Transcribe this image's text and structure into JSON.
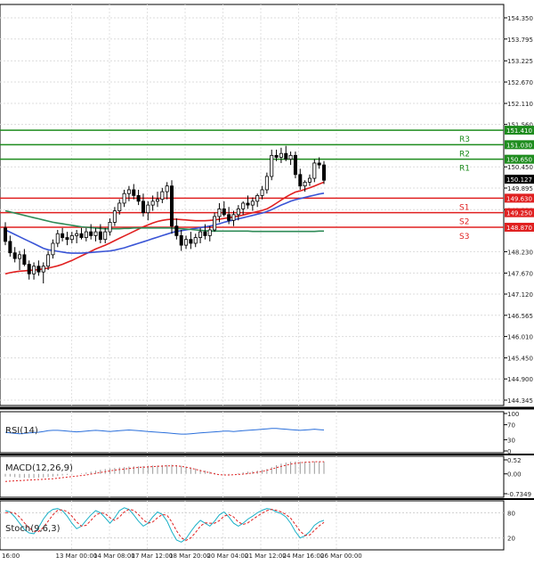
{
  "chart_data": {
    "type": "candlestick",
    "price_axis": {
      "ticks": [
        "154.350",
        "153.795",
        "153.225",
        "152.670",
        "152.110",
        "151.560",
        "150.450",
        "149.895",
        "149.330",
        "148.230",
        "147.670",
        "147.120",
        "146.565",
        "146.010",
        "145.450",
        "144.900",
        "144.345"
      ],
      "tick_values": [
        154.35,
        153.795,
        153.225,
        152.67,
        152.11,
        151.56,
        150.45,
        149.895,
        149.33,
        148.23,
        147.67,
        147.12,
        146.565,
        146.01,
        145.45,
        144.9,
        144.345
      ]
    },
    "current_price": {
      "label": "150.127",
      "value": 150.127
    },
    "levels": [
      {
        "name": "R3",
        "label": "151.410",
        "value": 151.41,
        "color": "#1e8c1e"
      },
      {
        "name": "R2",
        "label": "151.030",
        "value": 151.03,
        "color": "#1e8c1e"
      },
      {
        "name": "R1",
        "label": "150.650",
        "value": 150.65,
        "color": "#1e8c1e"
      },
      {
        "name": "S1",
        "label": "149.630",
        "value": 149.63,
        "color": "#e02020"
      },
      {
        "name": "S2",
        "label": "149.250",
        "value": 149.25,
        "color": "#e02020"
      },
      {
        "name": "S3",
        "label": "148.870",
        "value": 148.87,
        "color": "#e02020"
      }
    ],
    "time_axis": [
      "16:00",
      "13 Mar 00:00",
      "14 Mar 08:00",
      "17 Mar 12:00",
      "18 Mar 20:00",
      "20 Mar 04:00",
      "21 Mar 12:00",
      "24 Mar 16:00",
      "26 Mar 00:00"
    ],
    "candles": [
      [
        148.85,
        149.0,
        148.4,
        148.5
      ],
      [
        148.5,
        148.65,
        148.1,
        148.2
      ],
      [
        148.2,
        148.35,
        147.95,
        148.05
      ],
      [
        148.05,
        148.25,
        147.75,
        148.15
      ],
      [
        148.15,
        148.3,
        147.85,
        147.9
      ],
      [
        147.9,
        148.0,
        147.5,
        147.65
      ],
      [
        147.65,
        147.95,
        147.5,
        147.85
      ],
      [
        147.85,
        148.0,
        147.6,
        147.7
      ],
      [
        147.7,
        147.95,
        147.4,
        147.85
      ],
      [
        147.85,
        148.25,
        147.75,
        148.15
      ],
      [
        148.15,
        148.55,
        148.05,
        148.45
      ],
      [
        148.45,
        148.8,
        148.35,
        148.7
      ],
      [
        148.7,
        148.85,
        148.5,
        148.6
      ],
      [
        148.6,
        148.75,
        148.4,
        148.55
      ],
      [
        148.55,
        148.75,
        148.45,
        148.65
      ],
      [
        148.65,
        148.8,
        148.45,
        148.7
      ],
      [
        148.7,
        148.85,
        148.55,
        148.6
      ],
      [
        148.6,
        148.85,
        148.5,
        148.75
      ],
      [
        148.75,
        148.95,
        148.55,
        148.65
      ],
      [
        148.65,
        148.85,
        148.5,
        148.75
      ],
      [
        148.75,
        148.95,
        148.45,
        148.55
      ],
      [
        148.55,
        148.85,
        148.45,
        148.75
      ],
      [
        148.75,
        149.1,
        148.65,
        149.0
      ],
      [
        149.0,
        149.4,
        148.9,
        149.3
      ],
      [
        149.3,
        149.6,
        149.2,
        149.5
      ],
      [
        149.5,
        149.85,
        149.4,
        149.75
      ],
      [
        149.75,
        149.95,
        149.55,
        149.85
      ],
      [
        149.85,
        150.0,
        149.6,
        149.7
      ],
      [
        149.7,
        149.85,
        149.45,
        149.55
      ],
      [
        149.55,
        149.75,
        149.15,
        149.25
      ],
      [
        149.25,
        149.55,
        149.05,
        149.45
      ],
      [
        149.45,
        149.7,
        149.3,
        149.55
      ],
      [
        149.55,
        149.8,
        149.4,
        149.6
      ],
      [
        149.6,
        149.9,
        149.5,
        149.8
      ],
      [
        149.8,
        150.05,
        149.6,
        149.95
      ],
      [
        149.95,
        150.1,
        148.7,
        148.9
      ],
      [
        148.9,
        149.1,
        148.55,
        148.65
      ],
      [
        148.65,
        148.8,
        148.25,
        148.4
      ],
      [
        148.4,
        148.65,
        148.3,
        148.55
      ],
      [
        148.55,
        148.75,
        148.3,
        148.45
      ],
      [
        148.45,
        148.7,
        148.35,
        148.6
      ],
      [
        148.6,
        148.85,
        148.45,
        148.75
      ],
      [
        148.75,
        148.95,
        148.55,
        148.65
      ],
      [
        148.65,
        148.9,
        148.5,
        148.8
      ],
      [
        148.8,
        149.25,
        148.75,
        149.15
      ],
      [
        149.15,
        149.5,
        149.0,
        149.35
      ],
      [
        149.35,
        149.55,
        149.15,
        149.2
      ],
      [
        149.2,
        149.4,
        148.95,
        149.05
      ],
      [
        149.05,
        149.3,
        148.9,
        149.2
      ],
      [
        149.2,
        149.45,
        149.05,
        149.35
      ],
      [
        149.35,
        149.55,
        149.2,
        149.5
      ],
      [
        149.5,
        149.7,
        149.35,
        149.45
      ],
      [
        149.45,
        149.65,
        149.3,
        149.55
      ],
      [
        149.55,
        149.75,
        149.4,
        149.7
      ],
      [
        149.7,
        149.95,
        149.6,
        149.85
      ],
      [
        149.85,
        150.3,
        149.75,
        150.2
      ],
      [
        150.2,
        150.9,
        150.1,
        150.75
      ],
      [
        150.75,
        150.9,
        150.6,
        150.7
      ],
      [
        150.7,
        150.95,
        150.55,
        150.8
      ],
      [
        150.8,
        151.0,
        150.6,
        150.65
      ],
      [
        150.65,
        150.85,
        150.5,
        150.75
      ],
      [
        150.75,
        150.85,
        150.15,
        150.25
      ],
      [
        150.25,
        150.4,
        149.85,
        149.95
      ],
      [
        149.95,
        150.1,
        149.8,
        150.05
      ],
      [
        150.05,
        150.25,
        149.95,
        150.15
      ],
      [
        150.15,
        150.65,
        150.05,
        150.55
      ],
      [
        150.55,
        150.7,
        150.4,
        150.5
      ],
      [
        150.5,
        150.6,
        150.0,
        150.1
      ]
    ],
    "moving_averages": [
      {
        "name": "EMA fast",
        "color": "#e02020",
        "values": [
          147.65,
          147.68,
          147.7,
          147.72,
          147.73,
          147.74,
          147.75,
          147.76,
          147.78,
          147.8,
          147.83,
          147.86,
          147.9,
          147.95,
          148.0,
          148.06,
          148.12,
          148.18,
          148.24,
          148.3,
          148.35,
          148.4,
          148.46,
          148.52,
          148.58,
          148.64,
          148.7,
          148.76,
          148.82,
          148.88,
          148.93,
          148.98,
          149.02,
          149.05,
          149.07,
          149.08,
          149.08,
          149.07,
          149.06,
          149.05,
          149.04,
          149.04,
          149.04,
          149.05,
          149.06,
          149.08,
          149.1,
          149.12,
          149.14,
          149.16,
          149.19,
          149.22,
          149.25,
          149.28,
          149.31,
          149.35,
          149.42,
          149.5,
          149.58,
          149.66,
          149.73,
          149.79,
          149.82,
          149.86,
          149.9,
          149.95,
          150.0,
          150.05
        ]
      },
      {
        "name": "EMA mid",
        "color": "#3a55d6",
        "values": [
          148.8,
          148.74,
          148.68,
          148.62,
          148.56,
          148.5,
          148.44,
          148.38,
          148.32,
          148.28,
          148.26,
          148.24,
          148.22,
          148.2,
          148.19,
          148.19,
          148.19,
          148.2,
          148.21,
          148.22,
          148.23,
          148.24,
          148.25,
          148.27,
          148.3,
          148.33,
          148.37,
          148.41,
          148.45,
          148.49,
          148.53,
          148.57,
          148.61,
          148.65,
          148.69,
          148.73,
          148.76,
          148.78,
          148.8,
          148.82,
          148.84,
          148.86,
          148.88,
          148.9,
          148.93,
          148.96,
          149.0,
          149.03,
          149.06,
          149.09,
          149.12,
          149.15,
          149.18,
          149.21,
          149.24,
          149.28,
          149.33,
          149.39,
          149.45,
          149.5,
          149.55,
          149.59,
          149.62,
          149.65,
          149.68,
          149.71,
          149.74,
          149.76
        ]
      },
      {
        "name": "EMA slow",
        "color": "#2e8b57",
        "values": [
          149.3,
          149.27,
          149.24,
          149.21,
          149.18,
          149.15,
          149.12,
          149.09,
          149.06,
          149.03,
          149.0,
          148.98,
          148.96,
          148.94,
          148.92,
          148.9,
          148.88,
          148.87,
          148.86,
          148.85,
          148.84,
          148.83,
          148.83,
          148.83,
          148.83,
          148.84,
          148.84,
          148.85,
          148.85,
          148.85,
          148.85,
          148.85,
          148.85,
          148.85,
          148.85,
          148.85,
          148.84,
          148.83,
          148.82,
          148.81,
          148.8,
          148.79,
          148.78,
          148.77,
          148.77,
          148.77,
          148.77,
          148.77,
          148.77,
          148.77,
          148.77,
          148.77,
          148.76,
          148.76,
          148.76,
          148.76,
          148.76,
          148.76,
          148.76,
          148.76,
          148.76,
          148.76,
          148.76,
          148.76,
          148.76,
          148.76,
          148.77,
          148.77
        ]
      }
    ],
    "rsi": {
      "label": "RSI(14)",
      "ticks": [
        "100",
        "70",
        "30",
        "0"
      ],
      "tick_values": [
        100,
        70,
        30,
        0
      ],
      "color": "#2a6fdb",
      "values": [
        50,
        48,
        47,
        46,
        47,
        48,
        49,
        50,
        52,
        54,
        55,
        55,
        54,
        53,
        52,
        51,
        52,
        53,
        54,
        55,
        54,
        53,
        52,
        53,
        54,
        55,
        56,
        55,
        54,
        53,
        52,
        51,
        50,
        49,
        48,
        47,
        46,
        45,
        45,
        46,
        47,
        48,
        49,
        50,
        51,
        52,
        53,
        53,
        52,
        53,
        54,
        55,
        56,
        57,
        58,
        59,
        60,
        60,
        59,
        58,
        57,
        56,
        55,
        56,
        57,
        58,
        57,
        56
      ]
    },
    "macd": {
      "label": "MACD(12,26,9)",
      "ticks": [
        "0.52",
        "0.00",
        "-0.7349"
      ],
      "tick_values": [
        0.52,
        0.0,
        -0.7349
      ],
      "hist_color": "#999999",
      "signal_color": "#e02020",
      "histogram": [
        -0.1,
        -0.1,
        -0.12,
        -0.14,
        -0.14,
        -0.15,
        -0.15,
        -0.14,
        -0.13,
        -0.12,
        -0.1,
        -0.08,
        -0.06,
        -0.04,
        -0.02,
        0.0,
        0.02,
        0.05,
        0.08,
        0.12,
        0.15,
        0.18,
        0.2,
        0.22,
        0.24,
        0.25,
        0.27,
        0.28,
        0.28,
        0.29,
        0.3,
        0.31,
        0.31,
        0.32,
        0.33,
        0.34,
        0.32,
        0.3,
        0.27,
        0.24,
        0.2,
        0.16,
        0.12,
        0.08,
        0.04,
        0.0,
        -0.02,
        -0.02,
        0.0,
        0.03,
        0.06,
        0.08,
        0.1,
        0.12,
        0.15,
        0.18,
        0.25,
        0.32,
        0.38,
        0.42,
        0.45,
        0.46,
        0.45,
        0.45,
        0.45,
        0.46,
        0.46,
        0.46
      ],
      "signal": [
        -0.28,
        -0.27,
        -0.26,
        -0.25,
        -0.24,
        -0.23,
        -0.22,
        -0.21,
        -0.2,
        -0.19,
        -0.18,
        -0.16,
        -0.14,
        -0.12,
        -0.1,
        -0.08,
        -0.06,
        -0.04,
        -0.01,
        0.02,
        0.05,
        0.08,
        0.11,
        0.14,
        0.16,
        0.18,
        0.2,
        0.22,
        0.24,
        0.25,
        0.26,
        0.27,
        0.28,
        0.29,
        0.3,
        0.3,
        0.3,
        0.28,
        0.25,
        0.21,
        0.17,
        0.12,
        0.08,
        0.04,
        0.0,
        -0.03,
        -0.04,
        -0.04,
        -0.03,
        -0.02,
        -0.01,
        0.01,
        0.03,
        0.06,
        0.09,
        0.13,
        0.18,
        0.23,
        0.28,
        0.32,
        0.36,
        0.39,
        0.41,
        0.43,
        0.44,
        0.45,
        0.45,
        0.45
      ]
    },
    "stoch": {
      "label": "Stoch(9,6,3)",
      "ticks": [
        "80",
        "20"
      ],
      "tick_values": [
        80,
        20
      ],
      "k_color": "#1ab0c7",
      "d_color": "#e02020",
      "k": [
        85,
        82,
        70,
        55,
        40,
        32,
        30,
        45,
        65,
        80,
        88,
        90,
        85,
        72,
        55,
        42,
        48,
        62,
        75,
        85,
        80,
        68,
        55,
        68,
        85,
        92,
        88,
        75,
        60,
        48,
        55,
        70,
        82,
        76,
        60,
        35,
        15,
        10,
        18,
        35,
        50,
        62,
        55,
        48,
        60,
        75,
        82,
        70,
        55,
        48,
        55,
        65,
        72,
        80,
        86,
        90,
        88,
        82,
        78,
        70,
        55,
        35,
        20,
        25,
        35,
        50,
        58,
        62
      ],
      "d": [
        80,
        81,
        79,
        70,
        56,
        44,
        36,
        35,
        45,
        60,
        75,
        86,
        87,
        83,
        72,
        58,
        48,
        50,
        62,
        74,
        80,
        78,
        68,
        62,
        70,
        82,
        88,
        86,
        76,
        63,
        55,
        58,
        68,
        76,
        74,
        58,
        37,
        20,
        14,
        20,
        33,
        48,
        56,
        55,
        55,
        61,
        72,
        76,
        70,
        58,
        52,
        56,
        64,
        72,
        79,
        85,
        88,
        86,
        82,
        76,
        67,
        52,
        36,
        26,
        27,
        38,
        49,
        57
      ]
    }
  }
}
